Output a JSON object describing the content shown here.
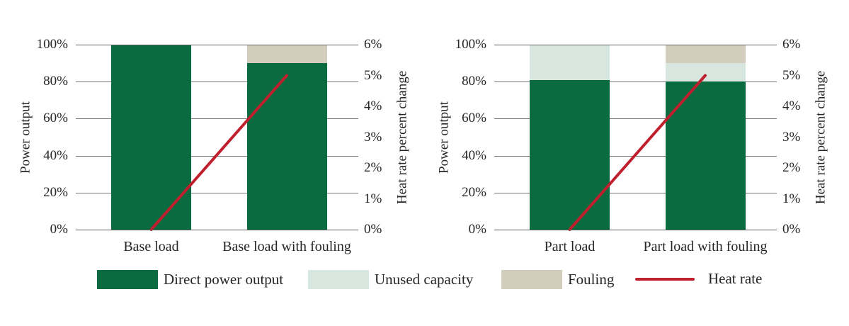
{
  "colors": {
    "direct_power": "#0a6b40",
    "unused_capacity": "#d7e6df",
    "fouling": "#d3cdbd",
    "heat_rate": "#c01f2d",
    "gridline": "#757575",
    "text": "#262626",
    "background": "#ffffff"
  },
  "chart_data": [
    {
      "type": "bar",
      "subtype": "stacked-bars-with-line",
      "categories": [
        "Base load",
        "Base load with fouling"
      ],
      "series": [
        {
          "name": "Direct power output",
          "color_key": "direct_power",
          "values": [
            100,
            90
          ]
        },
        {
          "name": "Unused capacity",
          "color_key": "unused_capacity",
          "values": [
            0,
            0
          ]
        },
        {
          "name": "Fouling",
          "color_key": "fouling",
          "values": [
            0,
            10
          ]
        }
      ],
      "line_series": {
        "name": "Heat rate",
        "color_key": "heat_rate",
        "axis": "right",
        "values": [
          0,
          5
        ]
      },
      "left_axis": {
        "label": "Power output",
        "ticks": [
          "100%",
          "80%",
          "60%",
          "40%",
          "20%",
          "0%"
        ],
        "tick_values": [
          100,
          80,
          60,
          40,
          20,
          0
        ],
        "range": [
          0,
          100
        ]
      },
      "right_axis": {
        "label": "Heat rate percent change",
        "ticks": [
          "6%",
          "5%",
          "4%",
          "3%",
          "2%",
          "1%",
          "0%"
        ],
        "tick_values": [
          6,
          5,
          4,
          3,
          2,
          1,
          0
        ],
        "range": [
          0,
          6
        ]
      },
      "grid": true,
      "legend_position": "bottom"
    },
    {
      "type": "bar",
      "subtype": "stacked-bars-with-line",
      "categories": [
        "Part load",
        "Part load with fouling"
      ],
      "series": [
        {
          "name": "Direct power output",
          "color_key": "direct_power",
          "values": [
            81,
            80
          ]
        },
        {
          "name": "Unused capacity",
          "color_key": "unused_capacity",
          "values": [
            19,
            10
          ]
        },
        {
          "name": "Fouling",
          "color_key": "fouling",
          "values": [
            0,
            10
          ]
        }
      ],
      "line_series": {
        "name": "Heat rate",
        "color_key": "heat_rate",
        "axis": "right",
        "values": [
          0,
          5
        ]
      },
      "left_axis": {
        "label": "Power output",
        "ticks": [
          "100%",
          "80%",
          "60%",
          "40%",
          "20%",
          "0%"
        ],
        "tick_values": [
          100,
          80,
          60,
          40,
          20,
          0
        ],
        "range": [
          0,
          100
        ]
      },
      "right_axis": {
        "label": "Heat rate percent change",
        "ticks": [
          "6%",
          "5%",
          "4%",
          "3%",
          "2%",
          "1%",
          "0%"
        ],
        "tick_values": [
          6,
          5,
          4,
          3,
          2,
          1,
          0
        ],
        "range": [
          0,
          6
        ]
      },
      "grid": true,
      "legend_position": "bottom"
    }
  ],
  "legend": {
    "items": [
      {
        "label": "Direct power output",
        "swatch": "rect",
        "color_key": "direct_power"
      },
      {
        "label": "Unused capacity",
        "swatch": "rect",
        "color_key": "unused_capacity"
      },
      {
        "label": "Fouling",
        "swatch": "rect",
        "color_key": "fouling"
      },
      {
        "label": "Heat rate",
        "swatch": "line",
        "color_key": "heat_rate"
      }
    ]
  }
}
